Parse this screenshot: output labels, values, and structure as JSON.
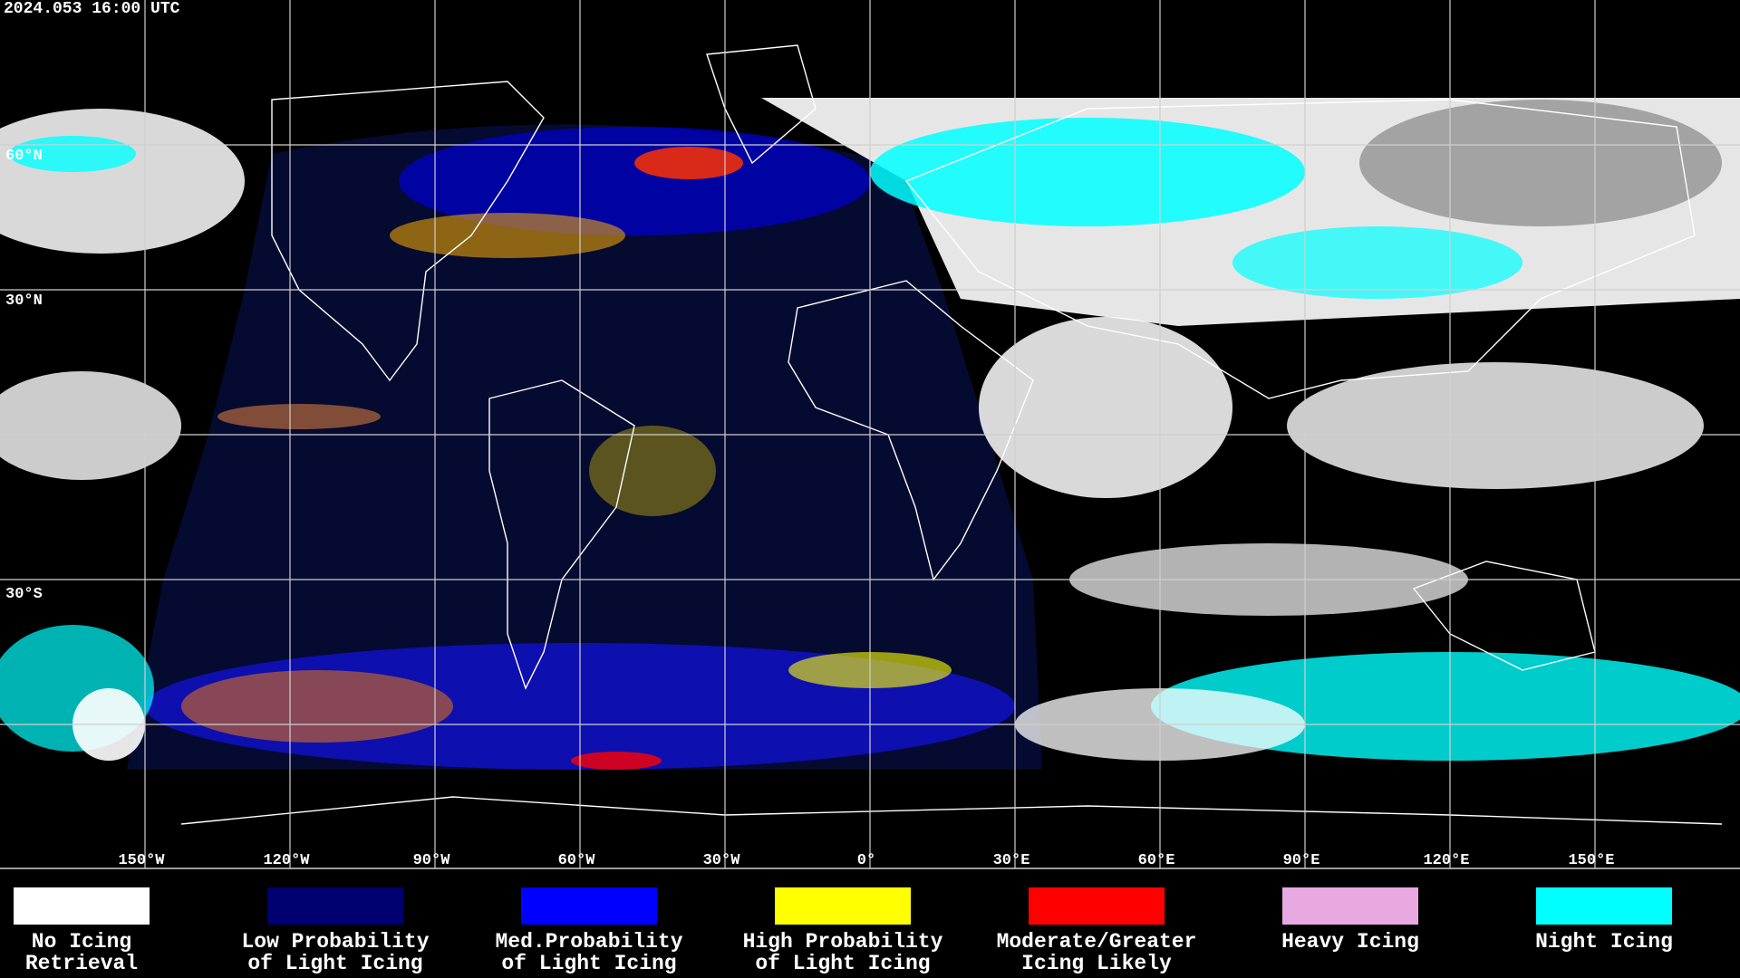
{
  "header": {
    "timestamp": "2024.053 16:00 UTC"
  },
  "map": {
    "latitude_labels": [
      "60°N",
      "30°N",
      "30°S"
    ],
    "longitude_labels": [
      "150°W",
      "120°W",
      "90°W",
      "60°W",
      "30°W",
      "0°",
      "30°E",
      "60°E",
      "90°E",
      "120°E",
      "150°E"
    ]
  },
  "legend": [
    {
      "color": "#ffffff",
      "label": [
        "No Icing",
        "Retrieval"
      ]
    },
    {
      "color": "#000070",
      "label": [
        "Low Probability",
        "of Light Icing"
      ]
    },
    {
      "color": "#0000ff",
      "label": [
        "Med.Probability",
        "of Light Icing"
      ]
    },
    {
      "color": "#ffff00",
      "label": [
        "High Probability",
        "of Light Icing"
      ]
    },
    {
      "color": "#ff0000",
      "label": [
        "Moderate/Greater",
        "Icing Likely"
      ]
    },
    {
      "color": "#e8a8e0",
      "label": [
        "Heavy Icing"
      ]
    },
    {
      "color": "#00ffff",
      "label": [
        "Night Icing"
      ]
    }
  ]
}
